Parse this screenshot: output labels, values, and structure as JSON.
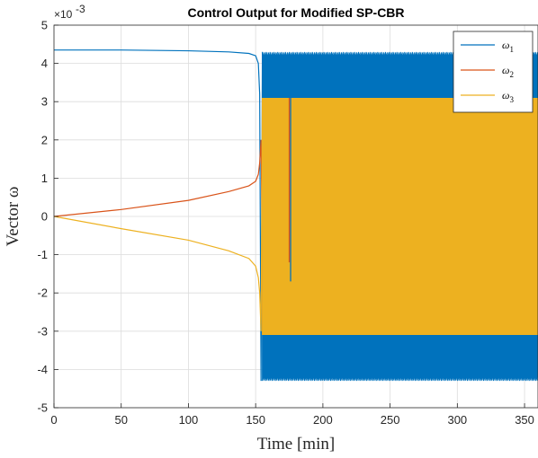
{
  "chart_data": {
    "type": "line",
    "title": "Control Output for Modified SP-CBR",
    "xlabel": "Time [min]",
    "ylabel": "Vector ω",
    "xlim": [
      0,
      360
    ],
    "ylim": [
      -0.005,
      0.005
    ],
    "x_ticks": [
      0,
      50,
      100,
      150,
      200,
      250,
      300,
      350
    ],
    "y_ticks": [
      -5,
      -4,
      -3,
      -2,
      -1,
      0,
      1,
      2,
      3,
      4,
      5
    ],
    "y_tick_labels": [
      "-5",
      "-4",
      "-3",
      "-2",
      "-1",
      "0",
      "1",
      "2",
      "3",
      "4",
      "5"
    ],
    "y_exponent_base": "×10",
    "y_exponent_power": "-3",
    "grid": true,
    "legend_position": "top-right",
    "series": [
      {
        "name": "ω1",
        "legend_symbol": "ω",
        "legend_subscript": "1",
        "color": "#0072BD",
        "points": [
          [
            0,
            0.00435
          ],
          [
            50,
            0.00435
          ],
          [
            100,
            0.00433
          ],
          [
            130,
            0.0043
          ],
          [
            145,
            0.00426
          ],
          [
            150,
            0.0042
          ],
          [
            152,
            0.004
          ],
          [
            153,
            0.0032
          ],
          [
            154,
            -0.0043
          ],
          [
            155,
            0.0043
          ]
        ],
        "oscillation": {
          "x_start": 155,
          "x_end": 360,
          "upper": 0.0043,
          "lower": -0.0043,
          "inner_band": 0.0031
        }
      },
      {
        "name": "ω2",
        "legend_symbol": "ω",
        "legend_subscript": "2",
        "color": "#D95319",
        "points": [
          [
            0,
            0.0
          ],
          [
            50,
            0.00018
          ],
          [
            100,
            0.00042
          ],
          [
            130,
            0.00065
          ],
          [
            145,
            0.0008
          ],
          [
            150,
            0.00092
          ],
          [
            152,
            0.0011
          ],
          [
            153,
            0.0014
          ],
          [
            154,
            0.002
          ],
          [
            155,
            -0.0012
          ]
        ],
        "oscillation": {
          "x_start": 155,
          "x_end": 195,
          "upper": 0.0031,
          "lower": -0.0031
        }
      },
      {
        "name": "ω3",
        "legend_symbol": "ω",
        "legend_subscript": "3",
        "color": "#EDB120",
        "points": [
          [
            0,
            0.0
          ],
          [
            50,
            -0.00032
          ],
          [
            100,
            -0.00062
          ],
          [
            130,
            -0.0009
          ],
          [
            145,
            -0.0011
          ],
          [
            150,
            -0.0013
          ],
          [
            152,
            -0.0016
          ],
          [
            153,
            -0.002
          ],
          [
            154,
            -0.003
          ],
          [
            155,
            0.0031
          ]
        ],
        "oscillation": {
          "x_start": 155,
          "x_end": 360,
          "upper": 0.0031,
          "lower": -0.0031
        }
      }
    ],
    "spikes": [
      {
        "series": "ω1",
        "x": 176,
        "y_from": 0.0031,
        "y_to": -0.0017
      },
      {
        "series": "ω2",
        "x": 175,
        "y_from": 0.0031,
        "y_to": -0.0012
      }
    ]
  }
}
